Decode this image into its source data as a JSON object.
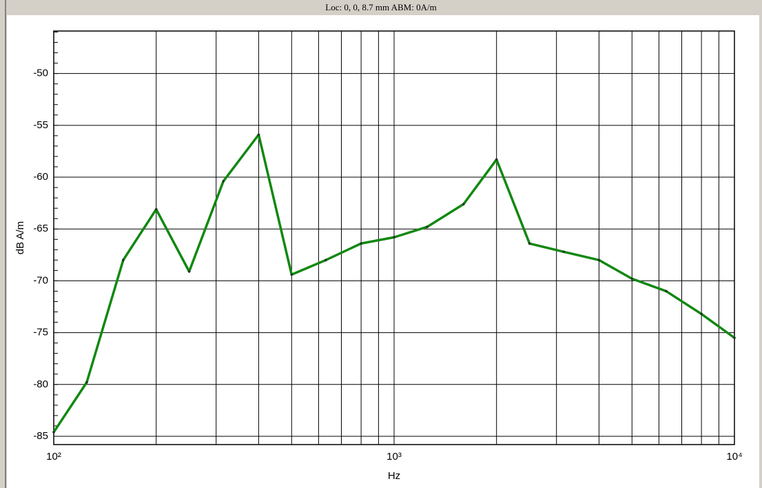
{
  "chart_data": {
    "type": "line",
    "title": "Loc: 0, 0, 8.7 mm ABM: 0A/m",
    "x_label": "Hz",
    "y_label": "dB A/m",
    "xscale": "log",
    "grid": true,
    "x": [
      100,
      125,
      160,
      200,
      250,
      315,
      400,
      500,
      630,
      800,
      1000,
      1250,
      1600,
      2000,
      2500,
      3150,
      4000,
      5000,
      6300,
      8000,
      10000
    ],
    "series": [
      {
        "name": "dB A/m",
        "color": "#118811",
        "values": [
          -84.6,
          -79.8,
          -68.0,
          -63.1,
          -69.1,
          -60.4,
          -55.9,
          -69.4,
          -68.0,
          -66.4,
          -65.8,
          -64.8,
          -62.6,
          -58.3,
          -66.4,
          -67.2,
          -68.0,
          -69.8,
          -71.0,
          -73.2,
          -75.5
        ]
      }
    ],
    "xlim": [
      100,
      10000
    ],
    "xticks": [
      {
        "value": 100,
        "label": "10²"
      },
      {
        "value": 1000,
        "label": "10³"
      },
      {
        "value": 10000,
        "label": "10⁴"
      }
    ],
    "ylim": [
      -85.8,
      -45.9
    ],
    "yticks": [
      -85,
      -80,
      -75,
      -70,
      -65,
      -60,
      -55,
      -50
    ]
  }
}
